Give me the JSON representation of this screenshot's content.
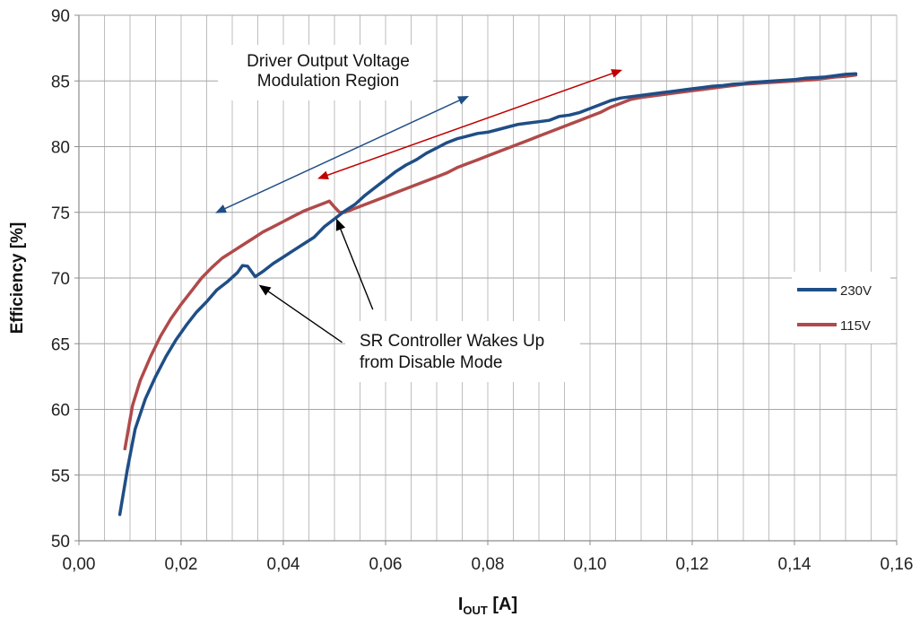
{
  "chart_data": {
    "type": "line",
    "xlabel_main": "I",
    "xlabel_sub": "OUT",
    "xlabel_unit": " [A]",
    "ylabel": "Efficiency [%]",
    "xlim": [
      0,
      0.16
    ],
    "ylim": [
      50,
      90
    ],
    "x_ticks": [
      "0,00",
      "0,02",
      "0,04",
      "0,06",
      "0,08",
      "0,10",
      "0,12",
      "0,14",
      "0,16"
    ],
    "y_ticks": [
      "50",
      "55",
      "60",
      "65",
      "70",
      "75",
      "80",
      "85",
      "90"
    ],
    "grid": true,
    "legend_position": "right",
    "series": [
      {
        "name": "230V",
        "color": "#1f4e86",
        "points": [
          [
            0.008,
            52.0
          ],
          [
            0.0095,
            55.5
          ],
          [
            0.011,
            58.5
          ],
          [
            0.013,
            60.8
          ],
          [
            0.015,
            62.5
          ],
          [
            0.017,
            64.0
          ],
          [
            0.019,
            65.3
          ],
          [
            0.021,
            66.4
          ],
          [
            0.023,
            67.4
          ],
          [
            0.025,
            68.2
          ],
          [
            0.027,
            69.1
          ],
          [
            0.029,
            69.7
          ],
          [
            0.031,
            70.4
          ],
          [
            0.032,
            70.95
          ],
          [
            0.033,
            70.9
          ],
          [
            0.0345,
            70.1
          ],
          [
            0.036,
            70.5
          ],
          [
            0.038,
            71.1
          ],
          [
            0.04,
            71.6
          ],
          [
            0.042,
            72.1
          ],
          [
            0.044,
            72.6
          ],
          [
            0.046,
            73.1
          ],
          [
            0.048,
            73.9
          ],
          [
            0.05,
            74.5
          ],
          [
            0.052,
            75.1
          ],
          [
            0.054,
            75.6
          ],
          [
            0.056,
            76.3
          ],
          [
            0.058,
            76.9
          ],
          [
            0.06,
            77.5
          ],
          [
            0.062,
            78.1
          ],
          [
            0.064,
            78.6
          ],
          [
            0.066,
            79.0
          ],
          [
            0.068,
            79.5
          ],
          [
            0.07,
            79.9
          ],
          [
            0.072,
            80.3
          ],
          [
            0.074,
            80.6
          ],
          [
            0.076,
            80.8
          ],
          [
            0.078,
            81.0
          ],
          [
            0.08,
            81.1
          ],
          [
            0.082,
            81.3
          ],
          [
            0.084,
            81.5
          ],
          [
            0.086,
            81.7
          ],
          [
            0.088,
            81.8
          ],
          [
            0.09,
            81.9
          ],
          [
            0.092,
            82.0
          ],
          [
            0.094,
            82.3
          ],
          [
            0.096,
            82.4
          ],
          [
            0.098,
            82.6
          ],
          [
            0.1,
            82.9
          ],
          [
            0.102,
            83.2
          ],
          [
            0.104,
            83.5
          ],
          [
            0.106,
            83.7
          ],
          [
            0.108,
            83.8
          ],
          [
            0.11,
            83.9
          ],
          [
            0.112,
            84.0
          ],
          [
            0.114,
            84.1
          ],
          [
            0.116,
            84.2
          ],
          [
            0.118,
            84.3
          ],
          [
            0.12,
            84.4
          ],
          [
            0.122,
            84.5
          ],
          [
            0.124,
            84.6
          ],
          [
            0.126,
            84.65
          ],
          [
            0.128,
            84.75
          ],
          [
            0.13,
            84.8
          ],
          [
            0.132,
            84.9
          ],
          [
            0.134,
            84.95
          ],
          [
            0.136,
            85.0
          ],
          [
            0.138,
            85.05
          ],
          [
            0.14,
            85.1
          ],
          [
            0.142,
            85.2
          ],
          [
            0.144,
            85.25
          ],
          [
            0.146,
            85.3
          ],
          [
            0.148,
            85.4
          ],
          [
            0.15,
            85.5
          ],
          [
            0.152,
            85.55
          ]
        ]
      },
      {
        "name": "115V",
        "color": "#b04a4a",
        "points": [
          [
            0.009,
            57.0
          ],
          [
            0.0105,
            60.3
          ],
          [
            0.012,
            62.2
          ],
          [
            0.014,
            64.0
          ],
          [
            0.016,
            65.6
          ],
          [
            0.018,
            66.9
          ],
          [
            0.02,
            68.0
          ],
          [
            0.022,
            69.0
          ],
          [
            0.024,
            70.0
          ],
          [
            0.026,
            70.8
          ],
          [
            0.028,
            71.5
          ],
          [
            0.03,
            72.0
          ],
          [
            0.032,
            72.5
          ],
          [
            0.034,
            73.0
          ],
          [
            0.036,
            73.5
          ],
          [
            0.038,
            73.9
          ],
          [
            0.04,
            74.3
          ],
          [
            0.042,
            74.7
          ],
          [
            0.044,
            75.1
          ],
          [
            0.046,
            75.4
          ],
          [
            0.048,
            75.7
          ],
          [
            0.049,
            75.85
          ],
          [
            0.05,
            75.4
          ],
          [
            0.051,
            75.0
          ],
          [
            0.052,
            75.0
          ],
          [
            0.054,
            75.3
          ],
          [
            0.056,
            75.6
          ],
          [
            0.058,
            75.9
          ],
          [
            0.06,
            76.2
          ],
          [
            0.062,
            76.5
          ],
          [
            0.064,
            76.8
          ],
          [
            0.066,
            77.1
          ],
          [
            0.068,
            77.4
          ],
          [
            0.07,
            77.7
          ],
          [
            0.072,
            78.0
          ],
          [
            0.074,
            78.4
          ],
          [
            0.076,
            78.7
          ],
          [
            0.078,
            79.0
          ],
          [
            0.08,
            79.3
          ],
          [
            0.082,
            79.6
          ],
          [
            0.084,
            79.9
          ],
          [
            0.086,
            80.2
          ],
          [
            0.088,
            80.5
          ],
          [
            0.09,
            80.8
          ],
          [
            0.092,
            81.1
          ],
          [
            0.094,
            81.4
          ],
          [
            0.096,
            81.7
          ],
          [
            0.098,
            82.0
          ],
          [
            0.1,
            82.3
          ],
          [
            0.102,
            82.6
          ],
          [
            0.104,
            83.0
          ],
          [
            0.106,
            83.3
          ],
          [
            0.108,
            83.6
          ],
          [
            0.11,
            83.75
          ],
          [
            0.112,
            83.85
          ],
          [
            0.114,
            83.95
          ],
          [
            0.116,
            84.05
          ],
          [
            0.118,
            84.15
          ],
          [
            0.12,
            84.25
          ],
          [
            0.122,
            84.35
          ],
          [
            0.124,
            84.45
          ],
          [
            0.126,
            84.55
          ],
          [
            0.128,
            84.65
          ],
          [
            0.13,
            84.75
          ],
          [
            0.132,
            84.8
          ],
          [
            0.134,
            84.85
          ],
          [
            0.136,
            84.9
          ],
          [
            0.138,
            84.95
          ],
          [
            0.14,
            85.0
          ],
          [
            0.142,
            85.05
          ],
          [
            0.144,
            85.1
          ],
          [
            0.146,
            85.2
          ],
          [
            0.148,
            85.3
          ],
          [
            0.15,
            85.35
          ],
          [
            0.152,
            85.45
          ]
        ]
      }
    ],
    "annotations": [
      {
        "id": "modulation",
        "lines": [
          "Driver Output Voltage",
          "Modulation Region"
        ],
        "arrows": [
          {
            "color": "#1f4e86",
            "from": [
              0.027,
              75.0
            ],
            "to": [
              0.076,
              83.8
            ],
            "double": true
          },
          {
            "color": "#c00000",
            "from": [
              0.047,
              77.6
            ],
            "to": [
              0.106,
              85.8
            ],
            "double": true
          }
        ]
      },
      {
        "id": "sr-controller",
        "lines": [
          "SR Controller Wakes Up",
          "from Disable Mode"
        ],
        "arrows": [
          {
            "color": "#000000",
            "from": [
              0.0515,
              65.1
            ],
            "to": [
              0.0355,
              69.4
            ],
            "double": false
          },
          {
            "color": "#000000",
            "from": [
              0.0575,
              67.6
            ],
            "to": [
              0.0505,
              74.4
            ],
            "double": false
          }
        ]
      }
    ]
  }
}
